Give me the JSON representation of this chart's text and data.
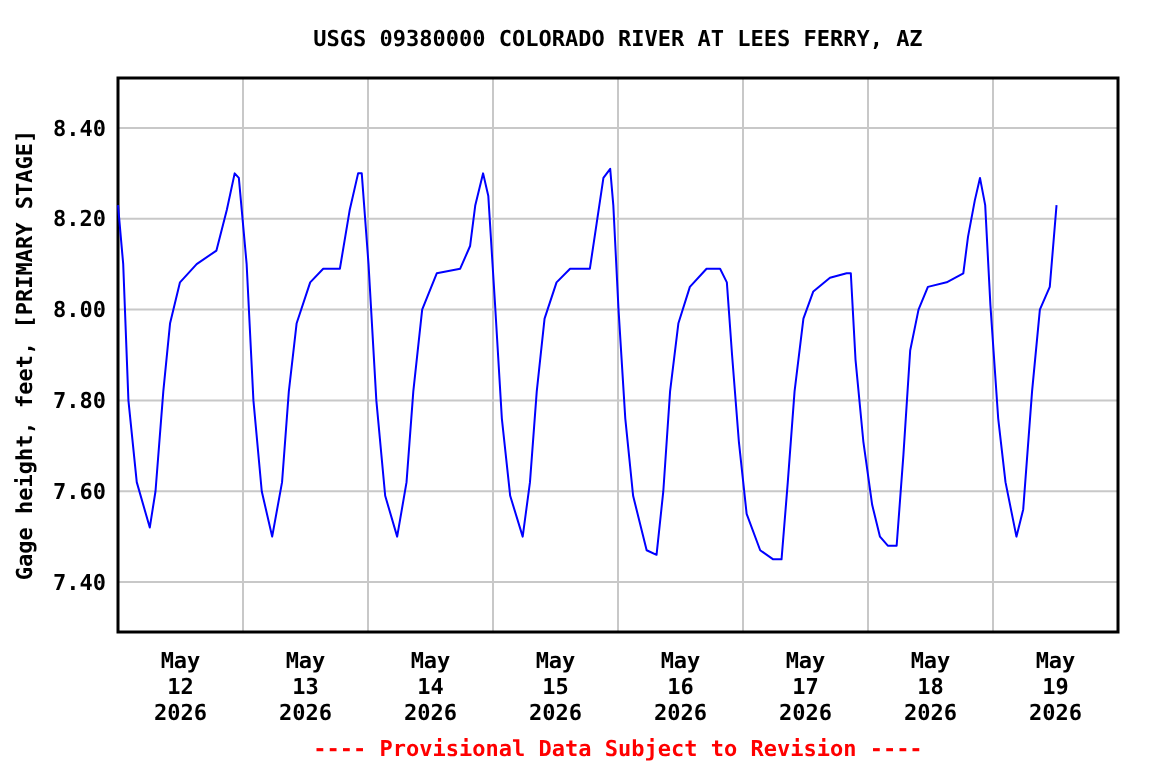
{
  "chart_data": {
    "type": "line",
    "title": "USGS 09380000 COLORADO RIVER AT LEES FERRY, AZ",
    "ylabel": "Gage height, feet, [PRIMARY STAGE]",
    "annotations": [
      "---- Provisional Data Subject to Revision ----"
    ],
    "xlim": [
      "2026-05-12T00:00",
      "2026-05-20T00:00"
    ],
    "xticks": [
      {
        "value": "2026-05-12T12:00",
        "label": "May\n12\n2026"
      },
      {
        "value": "2026-05-13T00:00",
        "label": null
      },
      {
        "value": "2026-05-13T12:00",
        "label": "May\n13\n2026"
      },
      {
        "value": "2026-05-14T00:00",
        "label": null
      },
      {
        "value": "2026-05-14T12:00",
        "label": "May\n14\n2026"
      },
      {
        "value": "2026-05-15T00:00",
        "label": null
      },
      {
        "value": "2026-05-15T12:00",
        "label": "May\n15\n2026"
      },
      {
        "value": "2026-05-16T00:00",
        "label": null
      },
      {
        "value": "2026-05-16T12:00",
        "label": "May\n16\n2026"
      },
      {
        "value": "2026-05-17T00:00",
        "label": null
      },
      {
        "value": "2026-05-17T12:00",
        "label": "May\n17\n2026"
      },
      {
        "value": "2026-05-18T00:00",
        "label": null
      },
      {
        "value": "2026-05-18T12:00",
        "label": "May\n18\n2026"
      },
      {
        "value": "2026-05-19T00:00",
        "label": null
      },
      {
        "value": "2026-05-19T12:00",
        "label": "May\n19\n2026"
      }
    ],
    "ylim": [
      7.29,
      8.51
    ],
    "yticks": [
      {
        "value": 7.4,
        "label": "7.40"
      },
      {
        "value": 7.6,
        "label": "7.60"
      },
      {
        "value": 7.8,
        "label": "7.80"
      },
      {
        "value": 8.0,
        "label": "8.00"
      },
      {
        "value": 8.2,
        "label": "8.20"
      },
      {
        "value": 8.4,
        "label": "8.40"
      }
    ],
    "grid": true,
    "marker": "none",
    "line_style": "solid",
    "series": [
      {
        "color": "#0000ff",
        "x": [
          "2026-05-12T00:00",
          "2026-05-12T01:00",
          "2026-05-12T02:00",
          "2026-05-12T03:36",
          "2026-05-12T06:06",
          "2026-05-12T07:12",
          "2026-05-12T08:42",
          "2026-05-12T10:00",
          "2026-05-12T11:54",
          "2026-05-12T15:06",
          "2026-05-12T18:54",
          "2026-05-12T20:54",
          "2026-05-12T22:24",
          "2026-05-12T23:12",
          "2026-05-13T00:42",
          "2026-05-13T02:00",
          "2026-05-13T03:36",
          "2026-05-13T05:36",
          "2026-05-13T07:30",
          "2026-05-13T08:48",
          "2026-05-13T10:18",
          "2026-05-13T12:54",
          "2026-05-13T15:24",
          "2026-05-13T18:36",
          "2026-05-13T20:30",
          "2026-05-13T22:06",
          "2026-05-13T22:48",
          "2026-05-14T00:06",
          "2026-05-14T01:36",
          "2026-05-14T03:18",
          "2026-05-14T05:36",
          "2026-05-14T07:24",
          "2026-05-14T08:42",
          "2026-05-14T10:24",
          "2026-05-14T13:12",
          "2026-05-14T17:42",
          "2026-05-14T19:36",
          "2026-05-14T20:36",
          "2026-05-14T22:06",
          "2026-05-14T23:06",
          "2026-05-15T00:24",
          "2026-05-15T01:42",
          "2026-05-15T03:18",
          "2026-05-15T05:42",
          "2026-05-15T07:06",
          "2026-05-15T08:24",
          "2026-05-15T09:54",
          "2026-05-15T12:12",
          "2026-05-15T14:48",
          "2026-05-15T18:36",
          "2026-05-15T19:54",
          "2026-05-15T21:12",
          "2026-05-15T22:30",
          "2026-05-15T23:06",
          "2026-05-16T00:06",
          "2026-05-16T01:24",
          "2026-05-16T02:54",
          "2026-05-16T05:30",
          "2026-05-16T07:24",
          "2026-05-16T08:42",
          "2026-05-16T10:00",
          "2026-05-16T11:36",
          "2026-05-16T13:48",
          "2026-05-16T17:00",
          "2026-05-16T19:36",
          "2026-05-16T20:54",
          "2026-05-16T21:54",
          "2026-05-16T23:12",
          "2026-05-17T00:42",
          "2026-05-17T03:18",
          "2026-05-17T05:48",
          "2026-05-17T07:24",
          "2026-05-17T08:36",
          "2026-05-17T09:54",
          "2026-05-17T11:36",
          "2026-05-17T13:30",
          "2026-05-17T16:42",
          "2026-05-17T19:54",
          "2026-05-17T20:42",
          "2026-05-17T21:36",
          "2026-05-17T23:06",
          "2026-05-18T00:48",
          "2026-05-18T02:18",
          "2026-05-18T03:48",
          "2026-05-18T05:30",
          "2026-05-18T06:48",
          "2026-05-18T08:06",
          "2026-05-18T09:42",
          "2026-05-18T11:30",
          "2026-05-18T15:06",
          "2026-05-18T18:18",
          "2026-05-18T19:12",
          "2026-05-18T20:30",
          "2026-05-18T21:30",
          "2026-05-18T22:30",
          "2026-05-18T23:30",
          "2026-05-19T01:00",
          "2026-05-19T02:24",
          "2026-05-19T04:30",
          "2026-05-19T05:48",
          "2026-05-19T07:30",
          "2026-05-19T09:00",
          "2026-05-19T10:54",
          "2026-05-19T12:12"
        ],
        "values": [
          8.23,
          8.1,
          7.8,
          7.62,
          7.52,
          7.6,
          7.82,
          7.97,
          8.06,
          8.1,
          8.13,
          8.22,
          8.3,
          8.29,
          8.1,
          7.8,
          7.6,
          7.5,
          7.62,
          7.82,
          7.97,
          8.06,
          8.09,
          8.09,
          8.22,
          8.3,
          8.3,
          8.1,
          7.8,
          7.59,
          7.5,
          7.62,
          7.82,
          8.0,
          8.08,
          8.09,
          8.14,
          8.23,
          8.3,
          8.25,
          8.01,
          7.76,
          7.59,
          7.5,
          7.62,
          7.82,
          7.98,
          8.06,
          8.09,
          8.09,
          8.19,
          8.29,
          8.31,
          8.23,
          8.0,
          7.76,
          7.59,
          7.47,
          7.46,
          7.6,
          7.82,
          7.97,
          8.05,
          8.09,
          8.09,
          8.06,
          7.9,
          7.71,
          7.55,
          7.47,
          7.45,
          7.45,
          7.62,
          7.82,
          7.98,
          8.04,
          8.07,
          8.08,
          8.08,
          7.89,
          7.71,
          7.57,
          7.5,
          7.48,
          7.48,
          7.68,
          7.91,
          8.0,
          8.05,
          8.06,
          8.08,
          8.16,
          8.24,
          8.29,
          8.23,
          8.01,
          7.76,
          7.62,
          7.5,
          7.56,
          7.82,
          8.0,
          8.05,
          8.23
        ]
      }
    ]
  }
}
